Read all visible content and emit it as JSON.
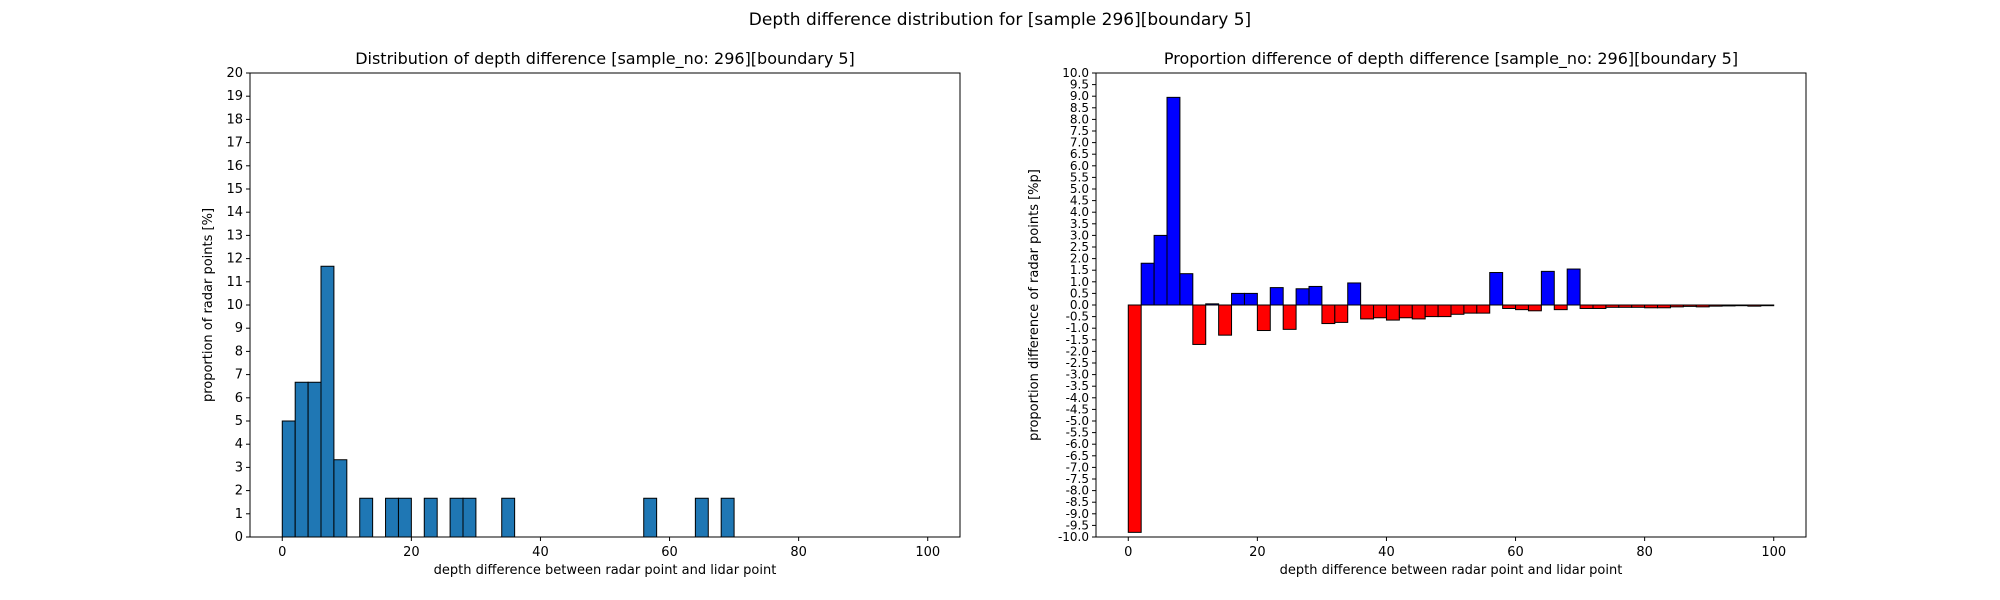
{
  "figure_title": "Depth difference distribution for [sample 296][boundary 5]",
  "chart_data": [
    {
      "type": "bar",
      "title": "Distribution of depth difference [sample_no: 296][boundary 5]",
      "xlabel": "depth difference between radar point and lidar point",
      "ylabel": "proportion of radar points [%]",
      "xlim": [
        -5,
        105
      ],
      "ylim": [
        0,
        20
      ],
      "xticks": [
        0,
        20,
        40,
        60,
        80,
        100
      ],
      "yticks": [
        0,
        1,
        2,
        3,
        4,
        5,
        6,
        7,
        8,
        9,
        10,
        11,
        12,
        13,
        14,
        15,
        16,
        17,
        18,
        19,
        20
      ],
      "bin_width": 2,
      "bar_color": "#1f77b4",
      "edge_color": "#000000",
      "bars": [
        {
          "x": 0,
          "value": 5.0
        },
        {
          "x": 2,
          "value": 6.67
        },
        {
          "x": 4,
          "value": 6.67
        },
        {
          "x": 6,
          "value": 11.67
        },
        {
          "x": 8,
          "value": 3.33
        },
        {
          "x": 12,
          "value": 1.67
        },
        {
          "x": 16,
          "value": 1.67
        },
        {
          "x": 18,
          "value": 1.67
        },
        {
          "x": 22,
          "value": 1.67
        },
        {
          "x": 26,
          "value": 1.67
        },
        {
          "x": 28,
          "value": 1.67
        },
        {
          "x": 34,
          "value": 1.67
        },
        {
          "x": 56,
          "value": 1.67
        },
        {
          "x": 64,
          "value": 1.67
        },
        {
          "x": 68,
          "value": 1.67
        }
      ]
    },
    {
      "type": "bar",
      "title": "Proportion difference of depth difference [sample_no: 296][boundary 5]",
      "xlabel": "depth difference between radar point and lidar point",
      "ylabel": "proportion difference of radar points [%p]",
      "xlim": [
        -5,
        105
      ],
      "ylim": [
        -10,
        10
      ],
      "xticks": [
        0,
        20,
        40,
        60,
        80,
        100
      ],
      "yticks": [
        -10.0,
        -9.5,
        -9.0,
        -8.5,
        -8.0,
        -7.5,
        -7.0,
        -6.5,
        -6.0,
        -5.5,
        -5.0,
        -4.5,
        -4.0,
        -3.5,
        -3.0,
        -2.5,
        -2.0,
        -1.5,
        -1.0,
        -0.5,
        0.0,
        0.5,
        1.0,
        1.5,
        2.0,
        2.5,
        3.0,
        3.5,
        4.0,
        4.5,
        5.0,
        5.5,
        6.0,
        6.5,
        7.0,
        7.5,
        8.0,
        8.5,
        9.0,
        9.5,
        10.0
      ],
      "bin_width": 2,
      "positive_color": "#0000ff",
      "negative_color": "#ff0000",
      "edge_color": "#000000",
      "bars": [
        {
          "x": 0,
          "value": -9.8
        },
        {
          "x": 2,
          "value": 1.8
        },
        {
          "x": 4,
          "value": 3.0
        },
        {
          "x": 6,
          "value": 8.95
        },
        {
          "x": 8,
          "value": 1.35
        },
        {
          "x": 10,
          "value": -1.7
        },
        {
          "x": 12,
          "value": 0.05
        },
        {
          "x": 14,
          "value": -1.3
        },
        {
          "x": 16,
          "value": 0.5
        },
        {
          "x": 18,
          "value": 0.5
        },
        {
          "x": 20,
          "value": -1.1
        },
        {
          "x": 22,
          "value": 0.75
        },
        {
          "x": 24,
          "value": -1.05
        },
        {
          "x": 26,
          "value": 0.7
        },
        {
          "x": 28,
          "value": 0.8
        },
        {
          "x": 30,
          "value": -0.8
        },
        {
          "x": 32,
          "value": -0.75
        },
        {
          "x": 34,
          "value": 0.95
        },
        {
          "x": 36,
          "value": -0.6
        },
        {
          "x": 38,
          "value": -0.55
        },
        {
          "x": 40,
          "value": -0.65
        },
        {
          "x": 42,
          "value": -0.55
        },
        {
          "x": 44,
          "value": -0.6
        },
        {
          "x": 46,
          "value": -0.5
        },
        {
          "x": 48,
          "value": -0.5
        },
        {
          "x": 50,
          "value": -0.4
        },
        {
          "x": 52,
          "value": -0.35
        },
        {
          "x": 54,
          "value": -0.35
        },
        {
          "x": 56,
          "value": 1.4
        },
        {
          "x": 58,
          "value": -0.15
        },
        {
          "x": 60,
          "value": -0.2
        },
        {
          "x": 62,
          "value": -0.25
        },
        {
          "x": 64,
          "value": 1.45
        },
        {
          "x": 66,
          "value": -0.2
        },
        {
          "x": 68,
          "value": 1.55
        },
        {
          "x": 70,
          "value": -0.15
        },
        {
          "x": 72,
          "value": -0.15
        },
        {
          "x": 74,
          "value": -0.1
        },
        {
          "x": 76,
          "value": -0.1
        },
        {
          "x": 78,
          "value": -0.1
        },
        {
          "x": 80,
          "value": -0.12
        },
        {
          "x": 82,
          "value": -0.12
        },
        {
          "x": 84,
          "value": -0.08
        },
        {
          "x": 86,
          "value": -0.06
        },
        {
          "x": 88,
          "value": -0.08
        },
        {
          "x": 90,
          "value": -0.05
        },
        {
          "x": 92,
          "value": -0.04
        },
        {
          "x": 94,
          "value": -0.03
        },
        {
          "x": 96,
          "value": -0.05
        },
        {
          "x": 98,
          "value": -0.03
        }
      ]
    }
  ]
}
